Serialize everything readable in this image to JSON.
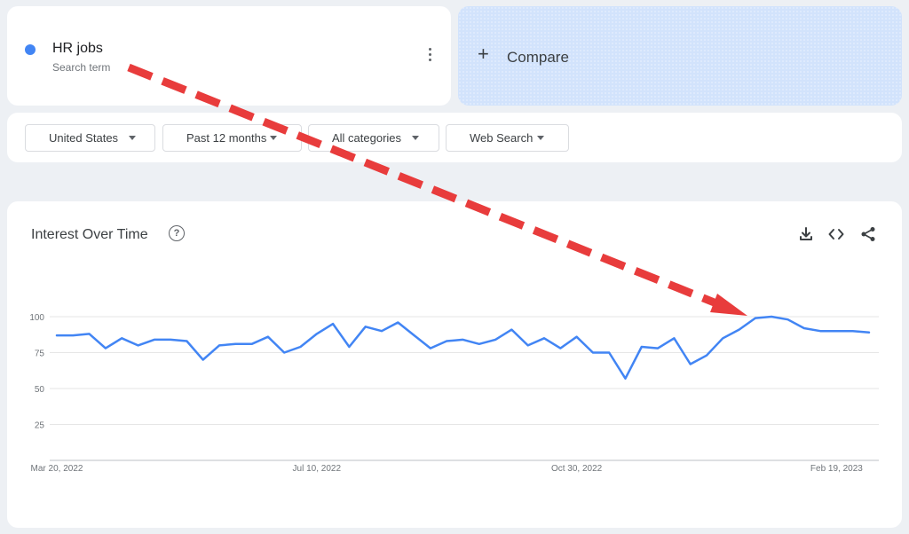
{
  "term": {
    "name": "HR jobs",
    "subtitle": "Search term",
    "color": "#4285f4"
  },
  "compare": {
    "label": "Compare"
  },
  "filters": [
    {
      "label": "United States"
    },
    {
      "label": "Past 12 months"
    },
    {
      "label": "All categories"
    },
    {
      "label": "Web Search"
    }
  ],
  "chart": {
    "title": "Interest Over Time",
    "help_icon_text": "?",
    "icons": [
      "download-icon",
      "embed-code-icon",
      "share-icon"
    ]
  },
  "annotation": {
    "arrow_color": "#e83c3c"
  },
  "chart_data": {
    "type": "line",
    "title": "Interest Over Time",
    "series": [
      {
        "name": "HR jobs",
        "color": "#4285f4",
        "values": [
          87,
          87,
          88,
          78,
          85,
          80,
          84,
          84,
          83,
          70,
          80,
          81,
          81,
          86,
          75,
          79,
          88,
          95,
          79,
          93,
          90,
          96,
          87,
          78,
          83,
          84,
          81,
          84,
          91,
          80,
          85,
          78,
          86,
          75,
          75,
          57,
          79,
          78,
          85,
          67,
          73,
          85,
          91,
          99,
          100,
          98,
          92,
          90,
          90,
          90,
          89
        ]
      }
    ],
    "x_tick_labels": [
      "Mar 20, 2022",
      "Jul 10, 2022",
      "Oct 30, 2022",
      "Feb 19, 2023"
    ],
    "x_tick_week_index": [
      0,
      16,
      32,
      48
    ],
    "y_ticks": [
      25,
      50,
      75,
      100
    ],
    "ylim": [
      0,
      100
    ],
    "grid": true,
    "legend": "none"
  }
}
